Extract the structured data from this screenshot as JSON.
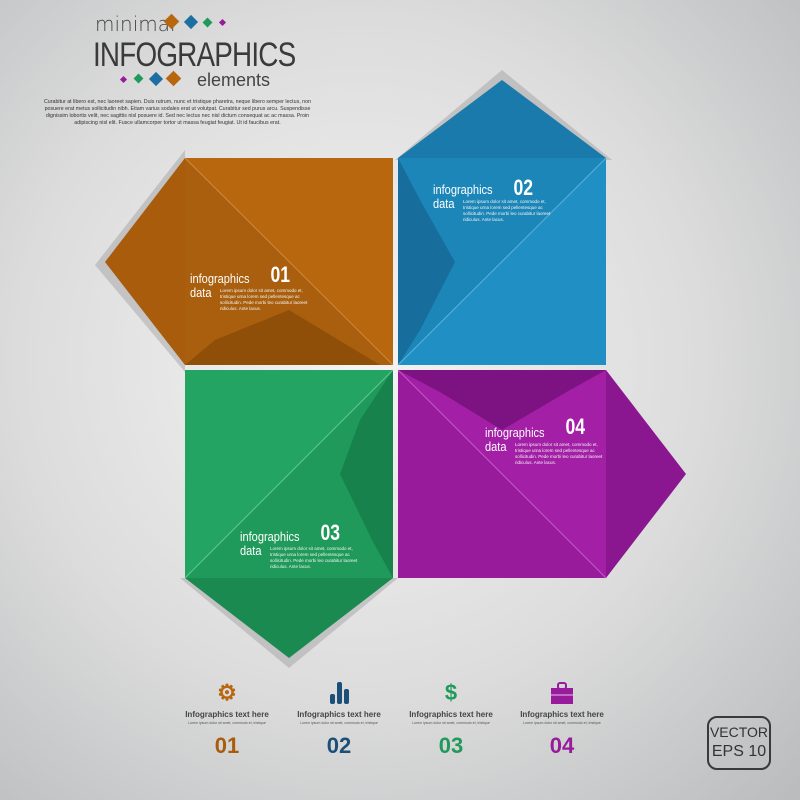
{
  "header": {
    "minimal": "minimal",
    "title": "INFOGRAPHICS",
    "elements": "elements",
    "body": "Curabitur at libero est, nec laoreet sapien. Duis rutrum, nunc et tristique pharetra, neque libero semper lectus, non posuere erat metus sollicitudin nibh. Etiam varius sodales erat ut volutpat. Curabitur sed purus arcu. Suspendisse dignissim lobortis velit, nec sagittis nisl posuere id. Sed nec lectus nec nisl dictum consequat ac ac massa. Proin adipiscing nisl elit. Fusce ullamcorper tortor ut massa feugiat feugiat. Ut id faucibus erat."
  },
  "colors": {
    "orange": "#b8670f",
    "blue": "#1c86b8",
    "green": "#1f9a5b",
    "purple": "#981b9c"
  },
  "boxes": [
    {
      "label1": "infographics",
      "label2": "data",
      "num": "01",
      "text": "Lorem ipsum dolor sit amet, commodo et, tristique urna lorem sed pellentesque ac sollicitudin. Pede morbi leo curabitur laoreet ridiculus. Ante lacus."
    },
    {
      "label1": "infographics",
      "label2": "data",
      "num": "02",
      "text": "Lorem ipsum dolor sit amet, commodo et, tristique urna lorem sed pellentesque ac sollicitudin. Pede morbi leo curabitur laoreet ridiculus. Ante lacus."
    },
    {
      "label1": "infographics",
      "label2": "data",
      "num": "03",
      "text": "Lorem ipsum dolor sit amet, commodo et, tristique urna lorem sed pellentesque ac sollicitudin. Pede morbi leo curabitur laoreet ridiculus. Ante lacus."
    },
    {
      "label1": "infographics",
      "label2": "data",
      "num": "04",
      "text": "Lorem ipsum dolor sit amet, commodo et, tristique urna lorem sed pellentesque ac sollicitudin. Pede morbi leo curabitur laoreet ridiculus. Ante lacus."
    }
  ],
  "features": [
    {
      "icon": "gear-icon",
      "glyph": "⚙",
      "title": "Infographics text here",
      "sub": "Lorem ipsum dolor sit amet, commodo et, tristique",
      "num": "01"
    },
    {
      "icon": "bar-chart-icon",
      "glyph": "",
      "title": "Infographics text here",
      "sub": "Lorem ipsum dolor sit amet, commodo et, tristique",
      "num": "02"
    },
    {
      "icon": "dollar-icon",
      "glyph": "$",
      "title": "Infographics text here",
      "sub": "Lorem ipsum dolor sit amet, commodo et, tristique",
      "num": "03"
    },
    {
      "icon": "briefcase-icon",
      "glyph": "",
      "title": "Infographics text here",
      "sub": "Lorem ipsum dolor sit amet, commodo et, tristique",
      "num": "04"
    }
  ],
  "badge": {
    "line1": "VECTOR",
    "line2": "EPS 10"
  }
}
